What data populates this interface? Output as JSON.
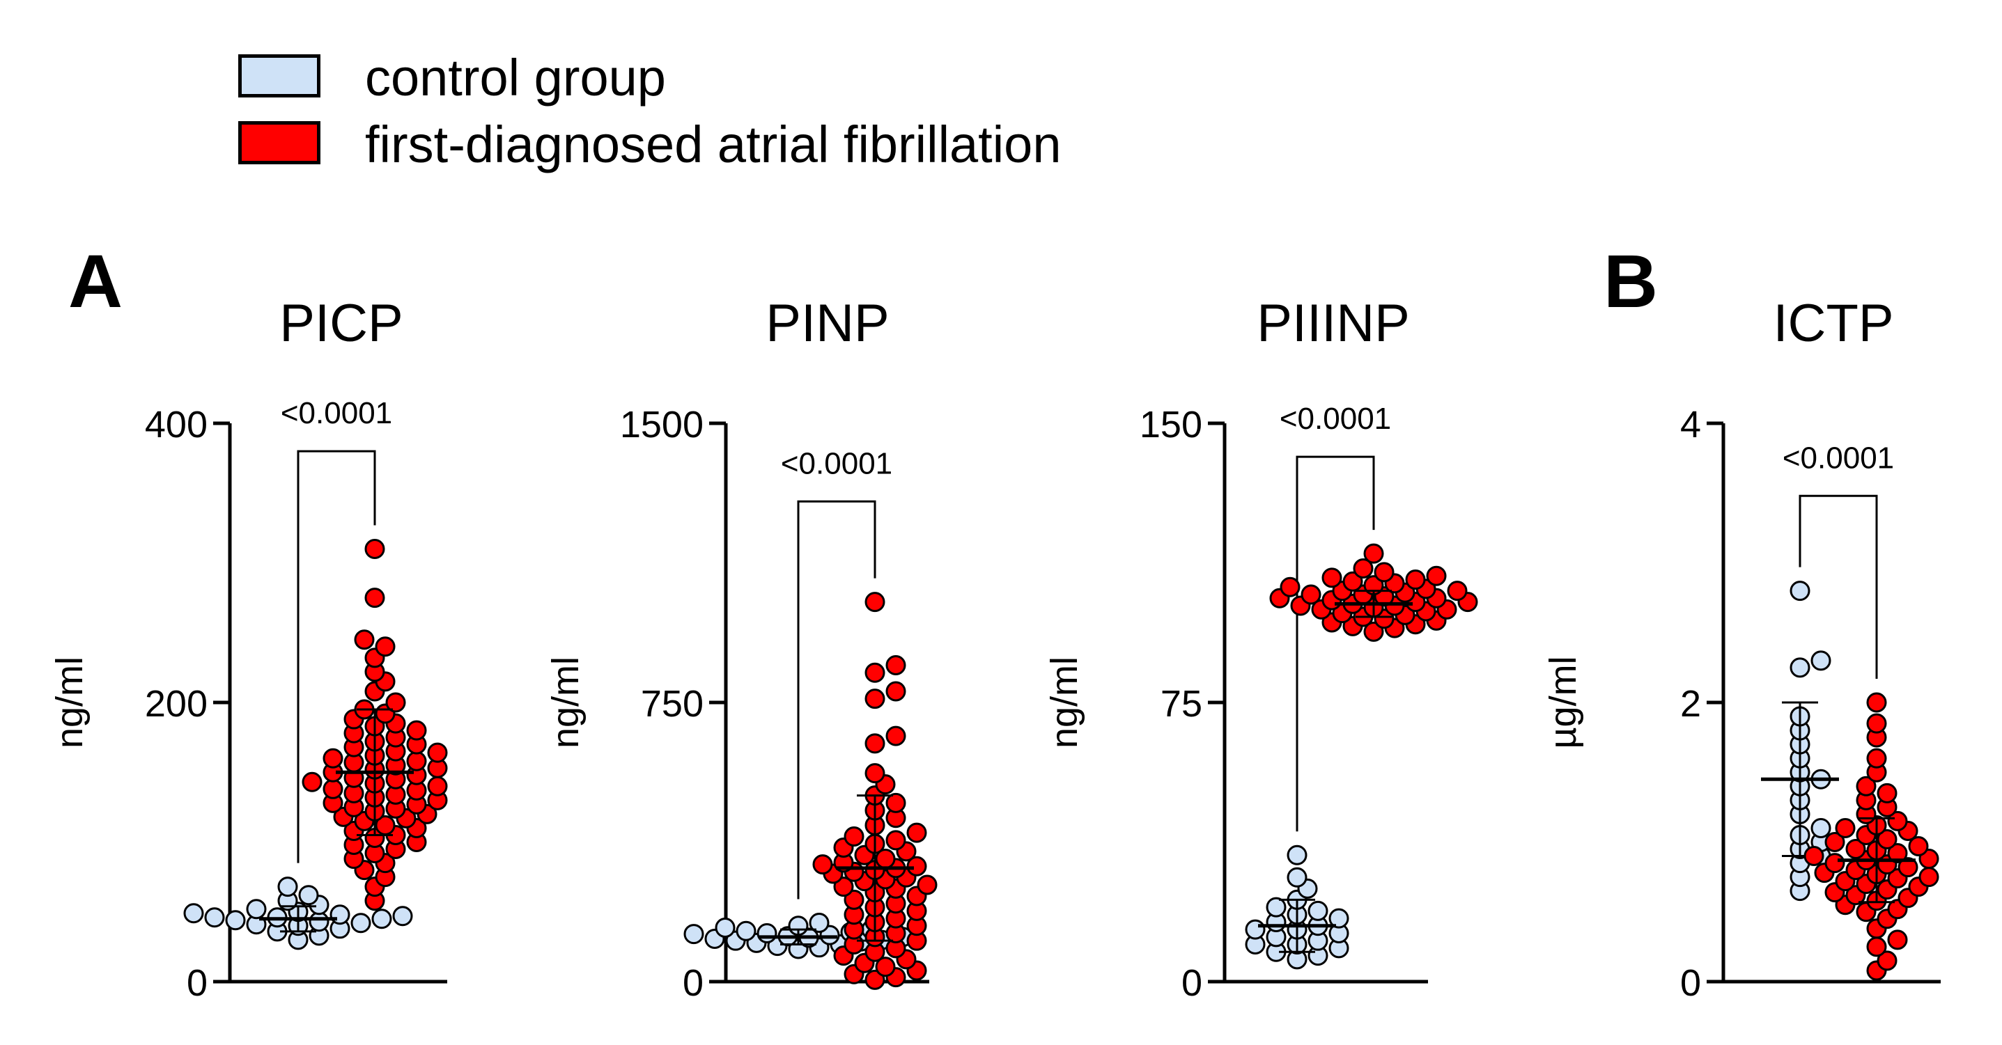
{
  "legend": {
    "items": [
      {
        "label": "control group",
        "color": "#cfe2f7"
      },
      {
        "label": "first-diagnosed atrial fibrillation",
        "color": "#ff0000"
      }
    ]
  },
  "panel_letters": {
    "a": "A",
    "b": "B"
  },
  "chart_data": [
    {
      "type": "scatter",
      "panel": "A",
      "title": "PICP",
      "ylabel": "ng/ml",
      "ylim": [
        0,
        400
      ],
      "yticks": [
        0,
        200,
        400
      ],
      "ytick_labels": [
        "0",
        "200",
        "400"
      ],
      "pvalue": "<0.0001",
      "bracket_top": 380,
      "groups": [
        {
          "name": "control group",
          "color": "#cfe2f7",
          "mean": 45,
          "sd": 9,
          "values": [
            30,
            33,
            36,
            38,
            40,
            41,
            42,
            43,
            44,
            45,
            46,
            46,
            47,
            48,
            49,
            50,
            52,
            55,
            58,
            62,
            68
          ]
        },
        {
          "name": "first-diagnosed atrial fibrillation",
          "color": "#ff0000",
          "mean": 150,
          "sd": 45,
          "values": [
            58,
            68,
            75,
            80,
            85,
            88,
            92,
            95,
            98,
            100,
            103,
            105,
            108,
            110,
            112,
            115,
            117,
            118,
            120,
            122,
            124,
            125,
            127,
            128,
            130,
            132,
            134,
            135,
            137,
            138,
            140,
            142,
            143,
            145,
            146,
            148,
            150,
            152,
            153,
            155,
            157,
            158,
            160,
            162,
            164,
            165,
            168,
            170,
            172,
            175,
            178,
            180,
            183,
            185,
            188,
            192,
            195,
            200,
            208,
            215,
            222,
            232,
            240,
            245,
            275,
            310
          ]
        }
      ]
    },
    {
      "type": "scatter",
      "panel": "A",
      "title": "PINP",
      "ylabel": "ng/ml",
      "ylim": [
        0,
        1500
      ],
      "yticks": [
        0,
        750,
        1500
      ],
      "ytick_labels": [
        "0",
        "750",
        "1500"
      ],
      "pvalue": "<0.0001",
      "bracket_top": 1290,
      "groups": [
        {
          "name": "control group",
          "color": "#cfe2f7",
          "mean": 120,
          "sd": 20,
          "values": [
            88,
            92,
            96,
            100,
            104,
            108,
            110,
            112,
            115,
            118,
            120,
            122,
            125,
            128,
            130,
            133,
            136,
            140,
            145,
            150,
            158
          ]
        },
        {
          "name": "first-diagnosed atrial fibrillation",
          "color": "#ff0000",
          "mean": 305,
          "sd": 195,
          "values": [
            5,
            12,
            20,
            30,
            40,
            50,
            60,
            70,
            80,
            90,
            100,
            110,
            120,
            130,
            140,
            150,
            160,
            170,
            180,
            190,
            200,
            210,
            220,
            230,
            240,
            250,
            255,
            260,
            270,
            275,
            280,
            290,
            295,
            300,
            305,
            310,
            315,
            320,
            330,
            340,
            350,
            360,
            370,
            380,
            390,
            400,
            420,
            440,
            460,
            480,
            500,
            530,
            560,
            640,
            660,
            760,
            780,
            830,
            850,
            1020
          ]
        }
      ]
    },
    {
      "type": "scatter",
      "panel": "A",
      "title": "PIIINP",
      "ylabel": "ng/ml",
      "ylim": [
        0,
        150
      ],
      "yticks": [
        0,
        75,
        150
      ],
      "ytick_labels": [
        "0",
        "75",
        "150"
      ],
      "pvalue": "<0.0001",
      "bracket_top": 141,
      "groups": [
        {
          "name": "control group",
          "color": "#cfe2f7",
          "mean": 15,
          "sd": 7,
          "values": [
            6,
            7,
            8,
            9,
            10,
            10,
            11,
            12,
            13,
            14,
            14,
            15,
            16,
            17,
            18,
            19,
            20,
            22,
            25,
            28,
            34
          ]
        },
        {
          "name": "first-diagnosed atrial fibrillation",
          "color": "#ff0000",
          "mean": 101.5,
          "sd": 3.5,
          "values": [
            94,
            95,
            95.5,
            96,
            96.5,
            97,
            97.5,
            98,
            98.5,
            99,
            99.5,
            100,
            100,
            100.5,
            101,
            101,
            101.5,
            102,
            102,
            102.5,
            103,
            103,
            103.5,
            104,
            104,
            104.5,
            105,
            105,
            105.5,
            106,
            106.5,
            107,
            107.5,
            108,
            108.5,
            109,
            110,
            111,
            115
          ]
        }
      ]
    },
    {
      "type": "scatter",
      "panel": "B",
      "title": "ICTP",
      "ylabel": "µg/ml",
      "ylim": [
        0,
        4
      ],
      "yticks": [
        0,
        2,
        4
      ],
      "ytick_labels": [
        "0",
        "2",
        "4"
      ],
      "pvalue": "<0.0001",
      "bracket_top": 3.48,
      "groups": [
        {
          "name": "control group",
          "color": "#cfe2f7",
          "mean": 1.45,
          "sd": 0.55,
          "values": [
            0.65,
            0.75,
            0.85,
            0.9,
            0.95,
            1.0,
            1.05,
            1.1,
            1.2,
            1.3,
            1.4,
            1.45,
            1.5,
            1.6,
            1.7,
            1.8,
            1.9,
            2.25,
            2.3,
            2.8
          ]
        },
        {
          "name": "first-diagnosed atrial fibrillation",
          "color": "#ff0000",
          "mean": 0.87,
          "sd": 0.3,
          "values": [
            0.08,
            0.15,
            0.25,
            0.3,
            0.38,
            0.45,
            0.5,
            0.52,
            0.55,
            0.58,
            0.6,
            0.62,
            0.64,
            0.66,
            0.68,
            0.7,
            0.72,
            0.74,
            0.75,
            0.77,
            0.78,
            0.8,
            0.82,
            0.84,
            0.85,
            0.87,
            0.88,
            0.9,
            0.92,
            0.94,
            0.95,
            0.97,
            1.0,
            1.02,
            1.05,
            1.08,
            1.1,
            1.12,
            1.15,
            1.2,
            1.25,
            1.3,
            1.35,
            1.4,
            1.5,
            1.6,
            1.75,
            1.85,
            2.0
          ]
        }
      ]
    }
  ]
}
